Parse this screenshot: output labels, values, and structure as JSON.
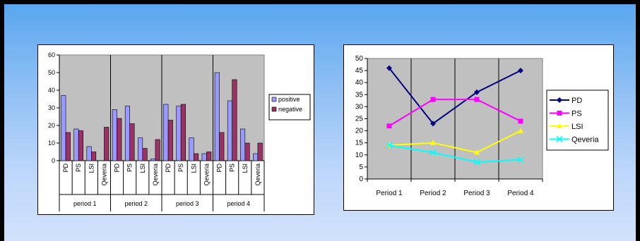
{
  "colors": {
    "plot_bg": "#c0c0c0",
    "positive": "#9999ff",
    "negative": "#993366",
    "PD": "#000080",
    "PS": "#ff00ff",
    "LSI": "#ffff00",
    "Qeveria": "#00ffff"
  },
  "chart_data": [
    {
      "type": "bar",
      "title": "",
      "xlabel": "",
      "ylabel": "",
      "ylim": [
        0,
        60
      ],
      "yticks": [
        0,
        10,
        20,
        30,
        40,
        50,
        60
      ],
      "groups": [
        "period 1",
        "period 2",
        "period 3",
        "period 4"
      ],
      "categories": [
        "PD",
        "PS",
        "LSI",
        "Qeveria"
      ],
      "series": [
        {
          "name": "positive",
          "values": [
            [
              37,
              18,
              8,
              0
            ],
            [
              29,
              31,
              13,
              1
            ],
            [
              32,
              31,
              13,
              4
            ],
            [
              50,
              34,
              18,
              4
            ]
          ]
        },
        {
          "name": "negative",
          "values": [
            [
              16,
              17,
              5,
              19
            ],
            [
              24,
              21,
              7,
              12
            ],
            [
              23,
              32,
              4,
              5
            ],
            [
              16,
              46,
              10,
              10
            ]
          ]
        }
      ],
      "legend": "right",
      "grid": false
    },
    {
      "type": "line",
      "title": "",
      "xlabel": "",
      "ylabel": "",
      "ylim": [
        0,
        50
      ],
      "yticks": [
        0,
        5,
        10,
        15,
        20,
        25,
        30,
        35,
        40,
        45,
        50
      ],
      "categories": [
        "Period 1",
        "Period 2",
        "Period 3",
        "Period 4"
      ],
      "series": [
        {
          "name": "PD",
          "values": [
            46,
            23,
            36,
            45
          ],
          "marker": "diamond"
        },
        {
          "name": "PS",
          "values": [
            22,
            33,
            33,
            24
          ],
          "marker": "square"
        },
        {
          "name": "LSI",
          "values": [
            14,
            15,
            11,
            20
          ],
          "marker": "triangle"
        },
        {
          "name": "Qeveria",
          "values": [
            14,
            11,
            7,
            8
          ],
          "marker": "x"
        }
      ],
      "legend": "right",
      "grid": false
    }
  ]
}
